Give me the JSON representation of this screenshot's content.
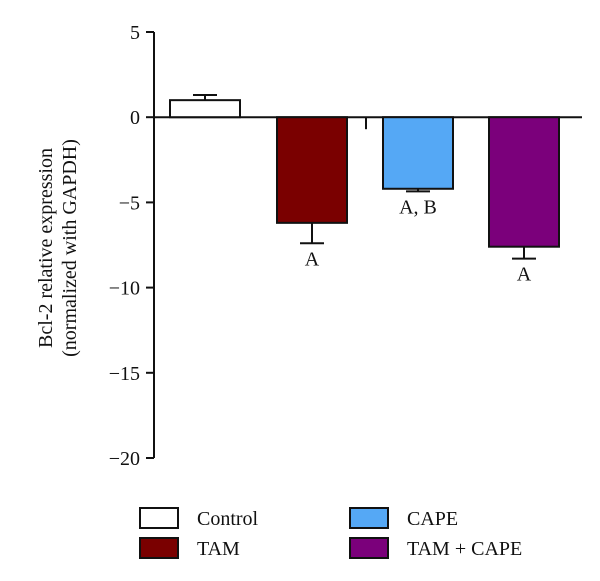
{
  "chart_data": {
    "type": "bar",
    "categories": [
      "Control",
      "TAM",
      "CAPE",
      "TAM + CAPE"
    ],
    "values": [
      1.0,
      -6.2,
      -4.2,
      -7.6
    ],
    "errors": [
      0.3,
      1.2,
      0.15,
      0.7
    ],
    "significance": [
      "",
      "A",
      "A, B",
      "A"
    ],
    "colors": [
      "#ffffff",
      "#7a0000",
      "#55a8f5",
      "#7b007b"
    ],
    "ylabel": [
      "Bcl-2 relative expression",
      "(normalized with GAPDH)"
    ],
    "ylim": [
      -20,
      5
    ],
    "yticks": [
      5,
      0,
      -5,
      -10,
      -15,
      -20
    ],
    "ytick_labels": [
      "5",
      "0",
      "−5",
      "−10",
      "−15",
      "−20"
    ],
    "legend": {
      "placement": "bottom",
      "entries": [
        "Control",
        "TAM",
        "CAPE",
        "TAM + CAPE"
      ]
    },
    "grid": false
  }
}
